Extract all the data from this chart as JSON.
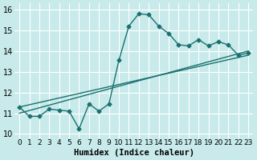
{
  "xlabel": "Humidex (Indice chaleur)",
  "ylabel": "",
  "background_color": "#c8eaea",
  "grid_color": "#ffffff",
  "line_color": "#1a7070",
  "xlim": [
    -0.5,
    23.5
  ],
  "ylim": [
    9.8,
    16.3
  ],
  "yticks": [
    10,
    11,
    12,
    13,
    14,
    15,
    16
  ],
  "xtick_labels": [
    "0",
    "1",
    "2",
    "3",
    "4",
    "5",
    "6",
    "7",
    "8",
    "9",
    "10",
    "11",
    "12",
    "13",
    "14",
    "15",
    "16",
    "17",
    "18",
    "19",
    "20",
    "21",
    "22",
    "23"
  ],
  "data_x": [
    0,
    1,
    2,
    3,
    4,
    5,
    6,
    7,
    8,
    9,
    10,
    11,
    12,
    13,
    14,
    15,
    16,
    17,
    18,
    19,
    20,
    21,
    22,
    23
  ],
  "data_y": [
    11.3,
    10.85,
    10.85,
    11.2,
    11.15,
    11.1,
    10.25,
    11.45,
    11.1,
    11.45,
    13.55,
    15.2,
    15.8,
    15.75,
    15.2,
    14.85,
    14.3,
    14.25,
    14.55,
    14.25,
    14.45,
    14.3,
    13.8,
    13.9
  ],
  "trend_x": [
    0,
    23
  ],
  "trend_y": [
    11.0,
    14.0
  ],
  "trend2_x": [
    0,
    23
  ],
  "trend2_y": [
    11.3,
    13.8
  ]
}
